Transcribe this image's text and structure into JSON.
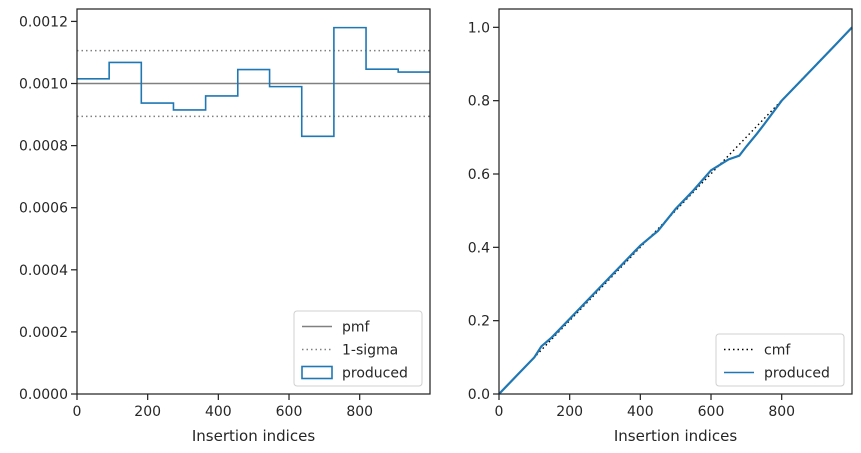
{
  "chart_data": [
    {
      "type": "histogram-step",
      "xlabel": "Insertion indices",
      "ylabel": "",
      "xlim": [
        0,
        999
      ],
      "ylim": [
        0,
        0.00124
      ],
      "xticks": [
        0,
        200,
        400,
        600,
        800
      ],
      "xtick_labels": [
        "0",
        "200",
        "400",
        "600",
        "800"
      ],
      "yticks": [
        0,
        0.0002,
        0.0004,
        0.0006,
        0.0008,
        0.001,
        0.0012
      ],
      "ytick_labels": [
        "0.0000",
        "0.0002",
        "0.0004",
        "0.0006",
        "0.0008",
        "0.0010",
        "0.0012"
      ],
      "bin_edges": [
        0,
        91,
        182,
        273,
        364,
        455,
        545,
        636,
        727,
        818,
        909,
        999
      ],
      "series": [
        {
          "name": "produced",
          "color": "#1f77b4",
          "values": [
            0.001015,
            0.001068,
            0.000937,
            0.000915,
            0.00096,
            0.001045,
            0.00099,
            0.00083,
            0.00118,
            0.001046,
            0.001037
          ]
        }
      ],
      "reference_lines": [
        {
          "name": "pmf",
          "y": 0.001,
          "style": "solid",
          "color": "#808080"
        },
        {
          "name": "1-sigma",
          "y": 0.001106,
          "style": "dotted",
          "color": "#808080"
        },
        {
          "name": "1-sigma",
          "y": 0.000894,
          "style": "dotted",
          "color": "#808080"
        }
      ],
      "legend": {
        "position": "lower-right",
        "entries": [
          "pmf",
          "1-sigma",
          "produced"
        ]
      }
    },
    {
      "type": "line",
      "xlabel": "Insertion indices",
      "ylabel": "",
      "xlim": [
        0,
        999
      ],
      "ylim": [
        0,
        1.05
      ],
      "xticks": [
        0,
        200,
        400,
        600,
        800
      ],
      "xtick_labels": [
        "0",
        "200",
        "400",
        "600",
        "800"
      ],
      "yticks": [
        0,
        0.2,
        0.4,
        0.6,
        0.8,
        1.0
      ],
      "ytick_labels": [
        "0.0",
        "0.2",
        "0.4",
        "0.6",
        "0.8",
        "1.0"
      ],
      "series": [
        {
          "name": "cmf",
          "style": "dotted",
          "color": "#000000",
          "x": [
            0,
            999
          ],
          "y": [
            0,
            1.0
          ]
        },
        {
          "name": "produced",
          "style": "solid",
          "color": "#1f77b4",
          "x": [
            0,
            50,
            100,
            120,
            150,
            200,
            250,
            300,
            350,
            400,
            450,
            500,
            550,
            600,
            650,
            680,
            700,
            730,
            750,
            800,
            850,
            900,
            950,
            999
          ],
          "y": [
            0,
            0.05,
            0.1,
            0.13,
            0.155,
            0.205,
            0.255,
            0.305,
            0.355,
            0.405,
            0.445,
            0.505,
            0.555,
            0.61,
            0.64,
            0.65,
            0.675,
            0.71,
            0.735,
            0.8,
            0.85,
            0.9,
            0.95,
            1.0
          ]
        }
      ],
      "legend": {
        "position": "lower-right",
        "entries": [
          "cmf",
          "produced"
        ]
      }
    }
  ]
}
